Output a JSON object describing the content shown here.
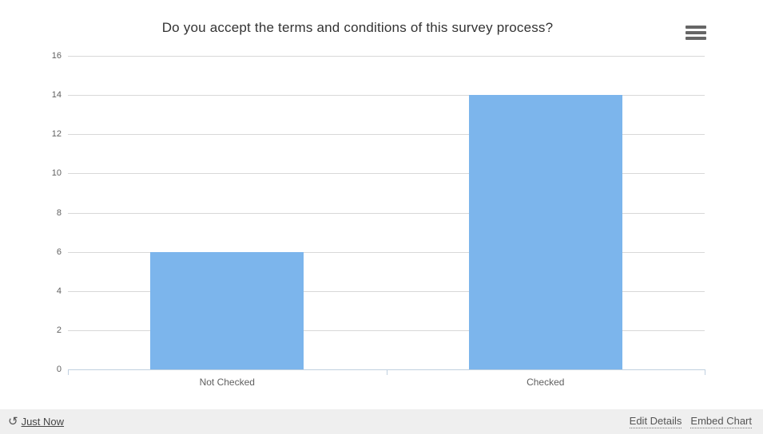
{
  "chart_data": {
    "type": "bar",
    "title": "Do you accept the terms and conditions of this survey process?",
    "categories": [
      "Not Checked",
      "Checked"
    ],
    "values": [
      6,
      14
    ],
    "xlabel": "",
    "ylabel": "",
    "ylim": [
      0,
      16
    ],
    "ytick_interval": 2,
    "yticks": [
      0,
      2,
      4,
      6,
      8,
      10,
      12,
      14,
      16
    ],
    "grid": true,
    "legend": "none",
    "bar_color": "#7cb5ec",
    "grid_line_color": "#d8d8d8",
    "axis_line_color": "#c0d0e0",
    "label_color": "#606060",
    "title_color": "#333333"
  },
  "icons": {
    "menu": "hamburger-icon",
    "refresh": "history-icon",
    "history_glyph": "↺"
  },
  "footer": {
    "last_updated": "Just Now",
    "edit_details_label": "Edit Details",
    "embed_chart_label": "Embed Chart",
    "background": "#efefef"
  }
}
